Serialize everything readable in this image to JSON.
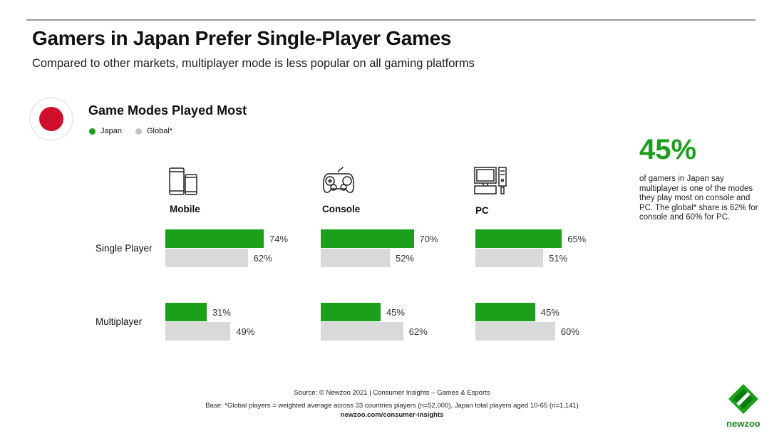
{
  "header": {
    "title": "Gamers in Japan Prefer Single-Player Games",
    "subtitle": "Compared to other markets, multiplayer mode is less popular on all gaming platforms"
  },
  "callout": {
    "value": "45%",
    "text": "of gamers in Japan say multiplayer is one of the modes they play most on console and PC. The global* share is 62% for console and 60% for PC."
  },
  "footer": {
    "source": "Source: © Newzoo 2021 | Consumer Insights – Games & Esports",
    "base": "Base: *Global players = weighted average across 33 countries players (n=52,000),  Japan total players aged 10-65 (n=1,141)",
    "url": "newzoo.com/consumer-insights",
    "logo_text": "newzoo"
  },
  "chart_data": {
    "type": "bar",
    "title": "Game Modes Played Most",
    "legend": [
      {
        "name": "Japan",
        "color": "#1aa01a"
      },
      {
        "name": "Global*",
        "color": "#c8c8c8"
      }
    ],
    "platforms": [
      "Mobile",
      "Console",
      "PC"
    ],
    "modes": [
      "Single Player",
      "Multiplayer"
    ],
    "series": [
      {
        "name": "Japan",
        "color": "#1aa01a",
        "values": {
          "Mobile": [
            74,
            31
          ],
          "Console": [
            70,
            45
          ],
          "PC": [
            65,
            45
          ]
        }
      },
      {
        "name": "Global*",
        "color": "#d9d9d9",
        "values": {
          "Mobile": [
            62,
            49
          ],
          "Console": [
            52,
            62
          ],
          "PC": [
            51,
            60
          ]
        }
      }
    ],
    "unit": "%"
  }
}
